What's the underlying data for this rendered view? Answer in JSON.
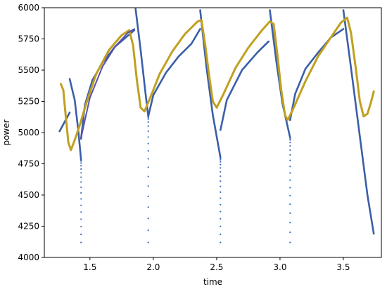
{
  "chart_data": {
    "type": "line",
    "title": "",
    "xlabel": "time",
    "ylabel": "power",
    "xlim": [
      1.14,
      3.8
    ],
    "ylim": [
      4000,
      6000
    ],
    "x_ticks": [
      1.5,
      2.0,
      2.5,
      3.0,
      3.5
    ],
    "x_tick_labels": [
      "1.5",
      "2.0",
      "2.5",
      "3.0",
      "3.5"
    ],
    "y_ticks": [
      4000,
      4250,
      4500,
      4750,
      5000,
      5250,
      5500,
      5750,
      6000
    ],
    "y_tick_labels": [
      "4000",
      "4250",
      "4500",
      "4750",
      "5000",
      "5250",
      "5500",
      "5750",
      "6000"
    ],
    "grid": false,
    "series": [
      {
        "color": "#3b5fa8",
        "style": "thick-line",
        "segments": [
          [
            [
              1.26,
              5010
            ],
            [
              1.34,
              5160
            ]
          ],
          [
            [
              1.34,
              5430
            ],
            [
              1.38,
              5260
            ],
            [
              1.41,
              5000
            ],
            [
              1.43,
              4780
            ]
          ],
          [
            [
              1.43,
              4950
            ],
            [
              1.46,
              5220
            ],
            [
              1.52,
              5420
            ],
            [
              1.6,
              5560
            ],
            [
              1.7,
              5690
            ],
            [
              1.85,
              5820
            ]
          ],
          [
            [
              1.86,
              5990
            ],
            [
              1.9,
              5660
            ],
            [
              1.94,
              5300
            ],
            [
              1.96,
              5130
            ]
          ],
          [
            [
              1.96,
              5130
            ],
            [
              2.0,
              5300
            ],
            [
              2.1,
              5480
            ],
            [
              2.2,
              5610
            ],
            [
              2.3,
              5710
            ],
            [
              2.37,
              5830
            ]
          ],
          [
            [
              2.37,
              5980
            ],
            [
              2.42,
              5520
            ],
            [
              2.47,
              5140
            ],
            [
              2.53,
              4800
            ]
          ],
          [
            [
              2.53,
              5020
            ],
            [
              2.58,
              5260
            ],
            [
              2.7,
              5500
            ],
            [
              2.82,
              5640
            ],
            [
              2.91,
              5730
            ]
          ],
          [
            [
              2.92,
              5980
            ],
            [
              2.97,
              5580
            ],
            [
              3.02,
              5230
            ],
            [
              3.08,
              4960
            ]
          ],
          [
            [
              3.08,
              5100
            ],
            [
              3.12,
              5310
            ],
            [
              3.2,
              5510
            ],
            [
              3.3,
              5640
            ],
            [
              3.4,
              5760
            ],
            [
              3.5,
              5830
            ]
          ],
          [
            [
              3.5,
              5980
            ],
            [
              3.56,
              5520
            ],
            [
              3.63,
              4970
            ],
            [
              3.69,
              4500
            ],
            [
              3.74,
              4190
            ]
          ]
        ]
      },
      {
        "color": "#c0a020",
        "style": "line",
        "points": [
          [
            1.27,
            5390
          ],
          [
            1.29,
            5340
          ],
          [
            1.31,
            5120
          ],
          [
            1.33,
            4920
          ],
          [
            1.35,
            4860
          ],
          [
            1.38,
            4940
          ],
          [
            1.42,
            5060
          ],
          [
            1.47,
            5230
          ],
          [
            1.55,
            5470
          ],
          [
            1.65,
            5660
          ],
          [
            1.75,
            5780
          ],
          [
            1.81,
            5820
          ],
          [
            1.84,
            5700
          ],
          [
            1.87,
            5420
          ],
          [
            1.9,
            5200
          ],
          [
            1.93,
            5170
          ],
          [
            1.98,
            5290
          ],
          [
            2.05,
            5470
          ],
          [
            2.15,
            5650
          ],
          [
            2.25,
            5790
          ],
          [
            2.35,
            5890
          ],
          [
            2.38,
            5900
          ],
          [
            2.41,
            5700
          ],
          [
            2.44,
            5460
          ],
          [
            2.47,
            5250
          ],
          [
            2.5,
            5200
          ],
          [
            2.55,
            5300
          ],
          [
            2.65,
            5520
          ],
          [
            2.75,
            5680
          ],
          [
            2.85,
            5810
          ],
          [
            2.92,
            5890
          ],
          [
            2.95,
            5870
          ],
          [
            2.98,
            5620
          ],
          [
            3.01,
            5340
          ],
          [
            3.04,
            5140
          ],
          [
            3.06,
            5100
          ],
          [
            3.1,
            5180
          ],
          [
            3.2,
            5410
          ],
          [
            3.3,
            5610
          ],
          [
            3.4,
            5760
          ],
          [
            3.48,
            5880
          ],
          [
            3.53,
            5920
          ],
          [
            3.56,
            5800
          ],
          [
            3.6,
            5500
          ],
          [
            3.63,
            5250
          ],
          [
            3.66,
            5130
          ],
          [
            3.69,
            5150
          ],
          [
            3.72,
            5250
          ],
          [
            3.74,
            5330
          ]
        ]
      },
      {
        "color": "#5a4fb0",
        "style": "thin-line",
        "points": [
          [
            1.43,
            4960
          ],
          [
            1.5,
            5280
          ],
          [
            1.6,
            5530
          ],
          [
            1.7,
            5690
          ],
          [
            1.8,
            5800
          ],
          [
            1.85,
            5830
          ]
        ]
      }
    ],
    "dotted_drops": [
      {
        "x": 1.43,
        "from": 4780,
        "to": 4120
      },
      {
        "x": 1.96,
        "from": 5120,
        "to": 4120
      },
      {
        "x": 2.53,
        "from": 4790,
        "to": 4120
      },
      {
        "x": 3.08,
        "from": 4950,
        "to": 4120
      }
    ]
  }
}
